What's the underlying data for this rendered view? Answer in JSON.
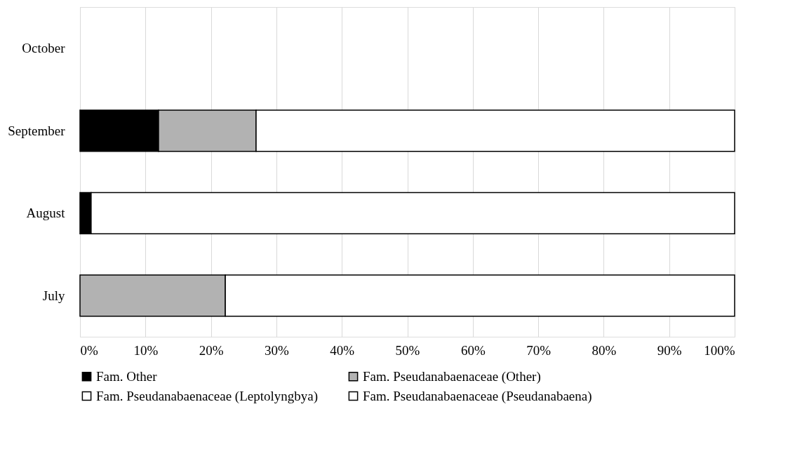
{
  "chart_data": {
    "type": "bar",
    "orientation": "horizontal",
    "stacked": true,
    "categories": [
      "October",
      "September",
      "August",
      "July"
    ],
    "series": [
      {
        "name": "Fam. Other",
        "color": "#000000",
        "values": [
          null,
          12.0,
          1.7,
          null
        ]
      },
      {
        "name": "Fam. Pseudanabaenaceae (Other)",
        "color": "#b2b2b2",
        "values": [
          null,
          14.9,
          null,
          22.2
        ]
      },
      {
        "name": "Fam. Pseudanabaenaceae (Leptolyngbya)",
        "color": "#ffffff",
        "values": [
          null,
          73.1,
          98.3,
          77.8
        ]
      },
      {
        "name": "Fam. Pseudanabaenaceae (Pseudanabaena)",
        "color": "#ffffff",
        "values": [
          null,
          null,
          null,
          null
        ]
      }
    ],
    "xlim": [
      0,
      100
    ],
    "xticks": [
      {
        "value": 0,
        "label": "0%"
      },
      {
        "value": 10,
        "label": "10%"
      },
      {
        "value": 20,
        "label": "20%"
      },
      {
        "value": 30,
        "label": "30%"
      },
      {
        "value": 40,
        "label": "40%"
      },
      {
        "value": 50,
        "label": "50%"
      },
      {
        "value": 60,
        "label": "60%"
      },
      {
        "value": 70,
        "label": "70%"
      },
      {
        "value": 80,
        "label": "80%"
      },
      {
        "value": 90,
        "label": "90%"
      },
      {
        "value": 100,
        "label": "100%"
      }
    ],
    "grid": "x",
    "legend": "bottom"
  }
}
